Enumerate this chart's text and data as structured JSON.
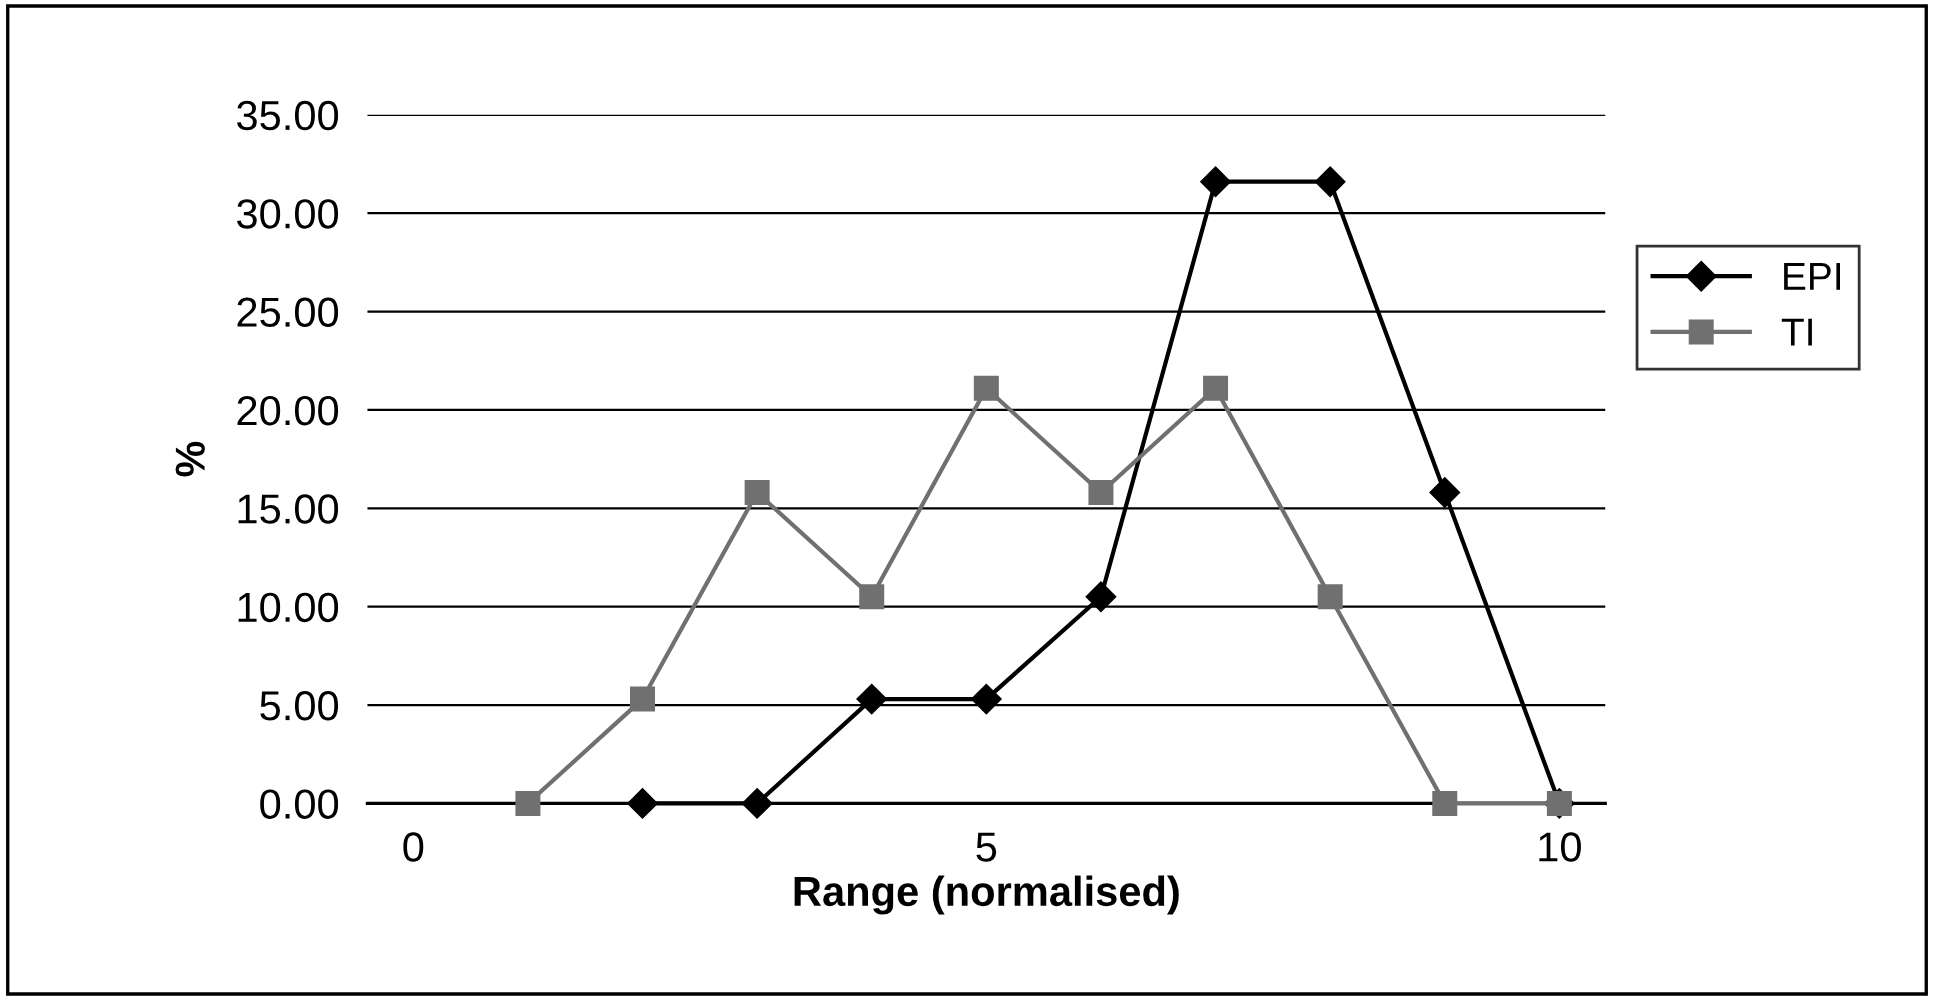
{
  "chart_data": {
    "type": "line",
    "xlabel": "Range (normalised)",
    "ylabel": "%",
    "xlim": [
      -0.4,
      10.4
    ],
    "xticks": [
      0,
      5,
      10
    ],
    "ylim": [
      0,
      35
    ],
    "yticks": [
      {
        "value": 0,
        "label": "0.00"
      },
      {
        "value": 5,
        "label": "5.00"
      },
      {
        "value": 10,
        "label": "10.00"
      },
      {
        "value": 15,
        "label": "15.00"
      },
      {
        "value": 20,
        "label": "20.00"
      },
      {
        "value": 25,
        "label": "25.00"
      },
      {
        "value": 30,
        "label": "30.00"
      },
      {
        "value": 35,
        "label": "35.00"
      }
    ],
    "grid": "y",
    "legend": "right",
    "line_style": "solid",
    "series": [
      {
        "name": "EPI",
        "color": "#000000",
        "marker": "diamond",
        "x": [
          2,
          3,
          4,
          5,
          6,
          7,
          8,
          9,
          10
        ],
        "values": [
          0,
          0,
          5.3,
          5.3,
          10.5,
          31.6,
          31.6,
          15.8,
          0
        ]
      },
      {
        "name": "TI",
        "color": "#707070",
        "marker": "square",
        "x": [
          1,
          2,
          3,
          4,
          5,
          6,
          7,
          8,
          9,
          10
        ],
        "values": [
          0,
          5.3,
          15.8,
          10.5,
          21.1,
          15.8,
          21.1,
          10.5,
          0,
          0
        ]
      }
    ]
  }
}
